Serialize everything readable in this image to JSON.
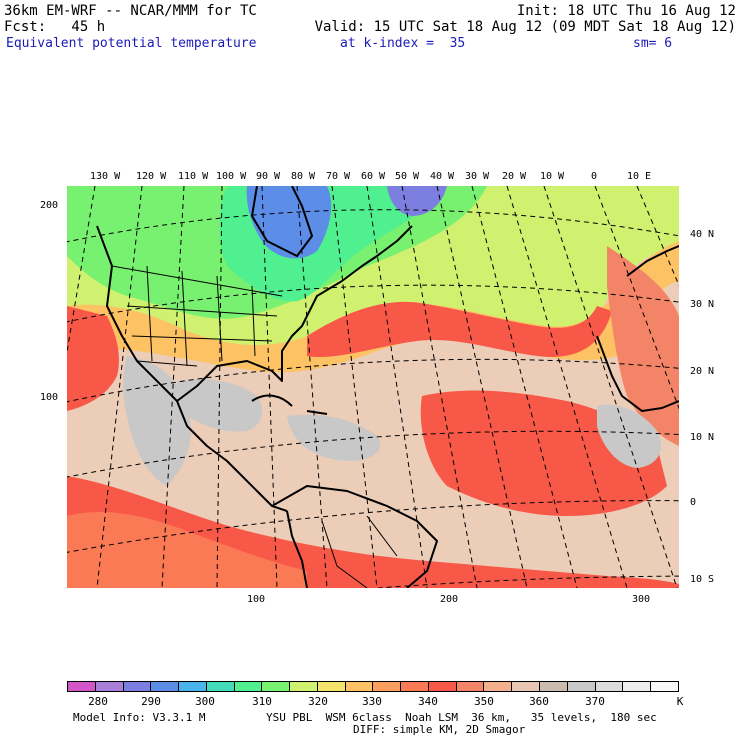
{
  "header": {
    "model": "36km EM-WRF -- NCAR/MMM for TC",
    "init": "Init: 18 UTC Thu 16 Aug 12",
    "fcst": "Fcst:   45 h",
    "valid": "Valid: 15 UTC Sat 18 Aug 12 (09 MDT Sat 18 Aug 12)",
    "field": "Equivalent potential temperature",
    "level": "at k-index =  35",
    "smooth": "sm= 6"
  },
  "top_axis": [
    "130 W",
    "120 W",
    "110 W",
    "100 W",
    "90 W",
    "80 W",
    "70 W",
    "60 W",
    "50 W",
    "40 W",
    "30 W",
    "20 W",
    "10 W",
    "0",
    "10 E"
  ],
  "right_axis": [
    "40 N",
    "30 N",
    "20 N",
    "10 N",
    "0",
    "10 S"
  ],
  "left_axis": [
    "200",
    "100"
  ],
  "bottom_axis": [
    "100",
    "200",
    "300"
  ],
  "colorbar": {
    "colors": [
      "#d256c8",
      "#a880d8",
      "#7c7ee0",
      "#5c8ee8",
      "#4cb4ec",
      "#44dcb8",
      "#50f090",
      "#78f070",
      "#d0f070",
      "#f4e46c",
      "#fcc264",
      "#fc9e60",
      "#fb7a56",
      "#f85848",
      "#f48468",
      "#f2b08c",
      "#e8c8b4",
      "#ccbcb0",
      "#c8c8c8",
      "#dcdcdc",
      "#eeeeee",
      "#f8f8f8"
    ],
    "labels": [
      "280",
      "290",
      "300",
      "310",
      "320",
      "330",
      "340",
      "350",
      "360",
      "370"
    ],
    "unit": "K"
  },
  "footer": {
    "info": "Model Info: V3.3.1 M",
    "physics": "YSU PBL  WSM 6class  Noah LSM  36 km,   35 levels,  180 sec",
    "diff": "DIFF: simple KM, 2D Smagor"
  }
}
